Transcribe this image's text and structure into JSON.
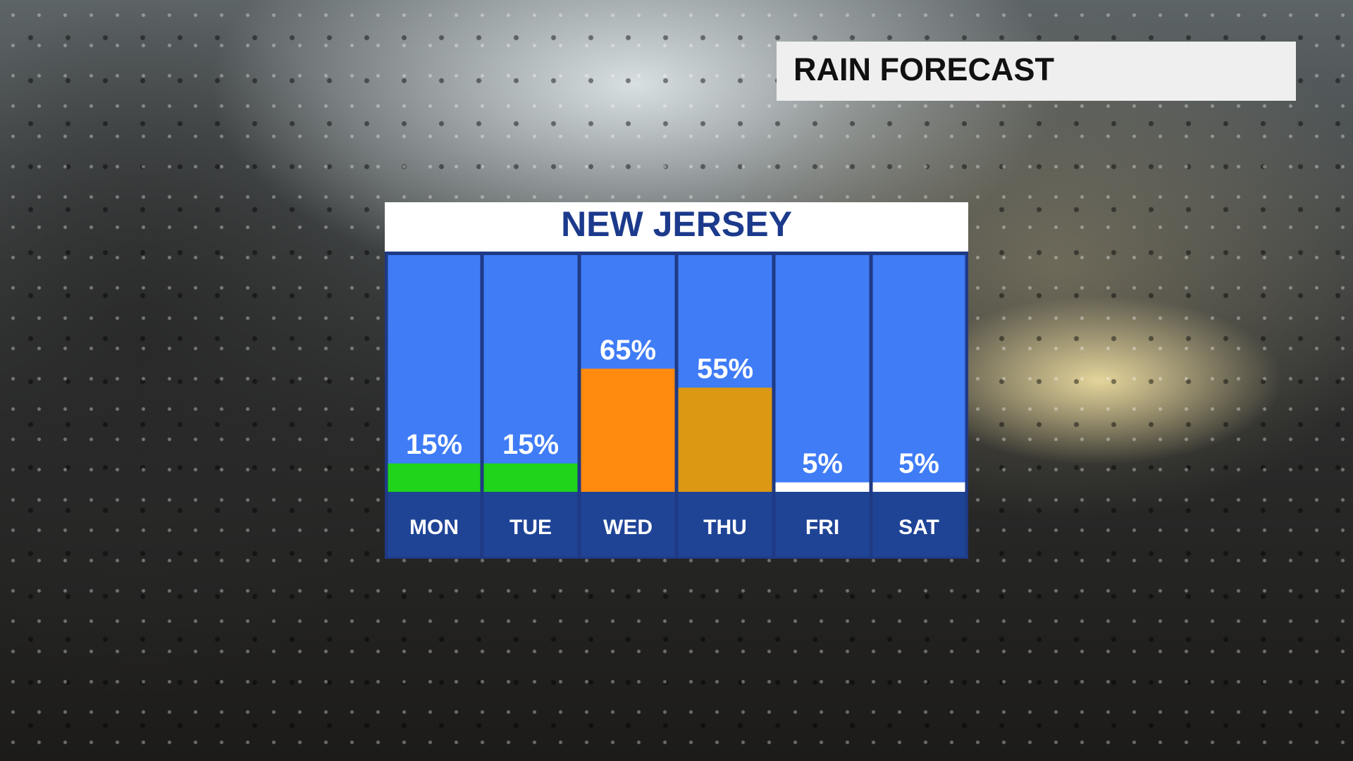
{
  "header": {
    "title": "RAIN FORECAST"
  },
  "chart_data": {
    "type": "bar",
    "title": "NEW JERSEY",
    "categories": [
      "MON",
      "TUE",
      "WED",
      "THU",
      "FRI",
      "SAT"
    ],
    "values": [
      15,
      15,
      65,
      55,
      5,
      5
    ],
    "value_labels": [
      "15%",
      "15%",
      "65%",
      "55%",
      "5%",
      "5%"
    ],
    "colors": [
      "#1fd41a",
      "#1fd41a",
      "#ff8a0d",
      "#dc9812",
      "#ffffff",
      "#ffffff"
    ],
    "ylim": [
      0,
      125
    ]
  }
}
